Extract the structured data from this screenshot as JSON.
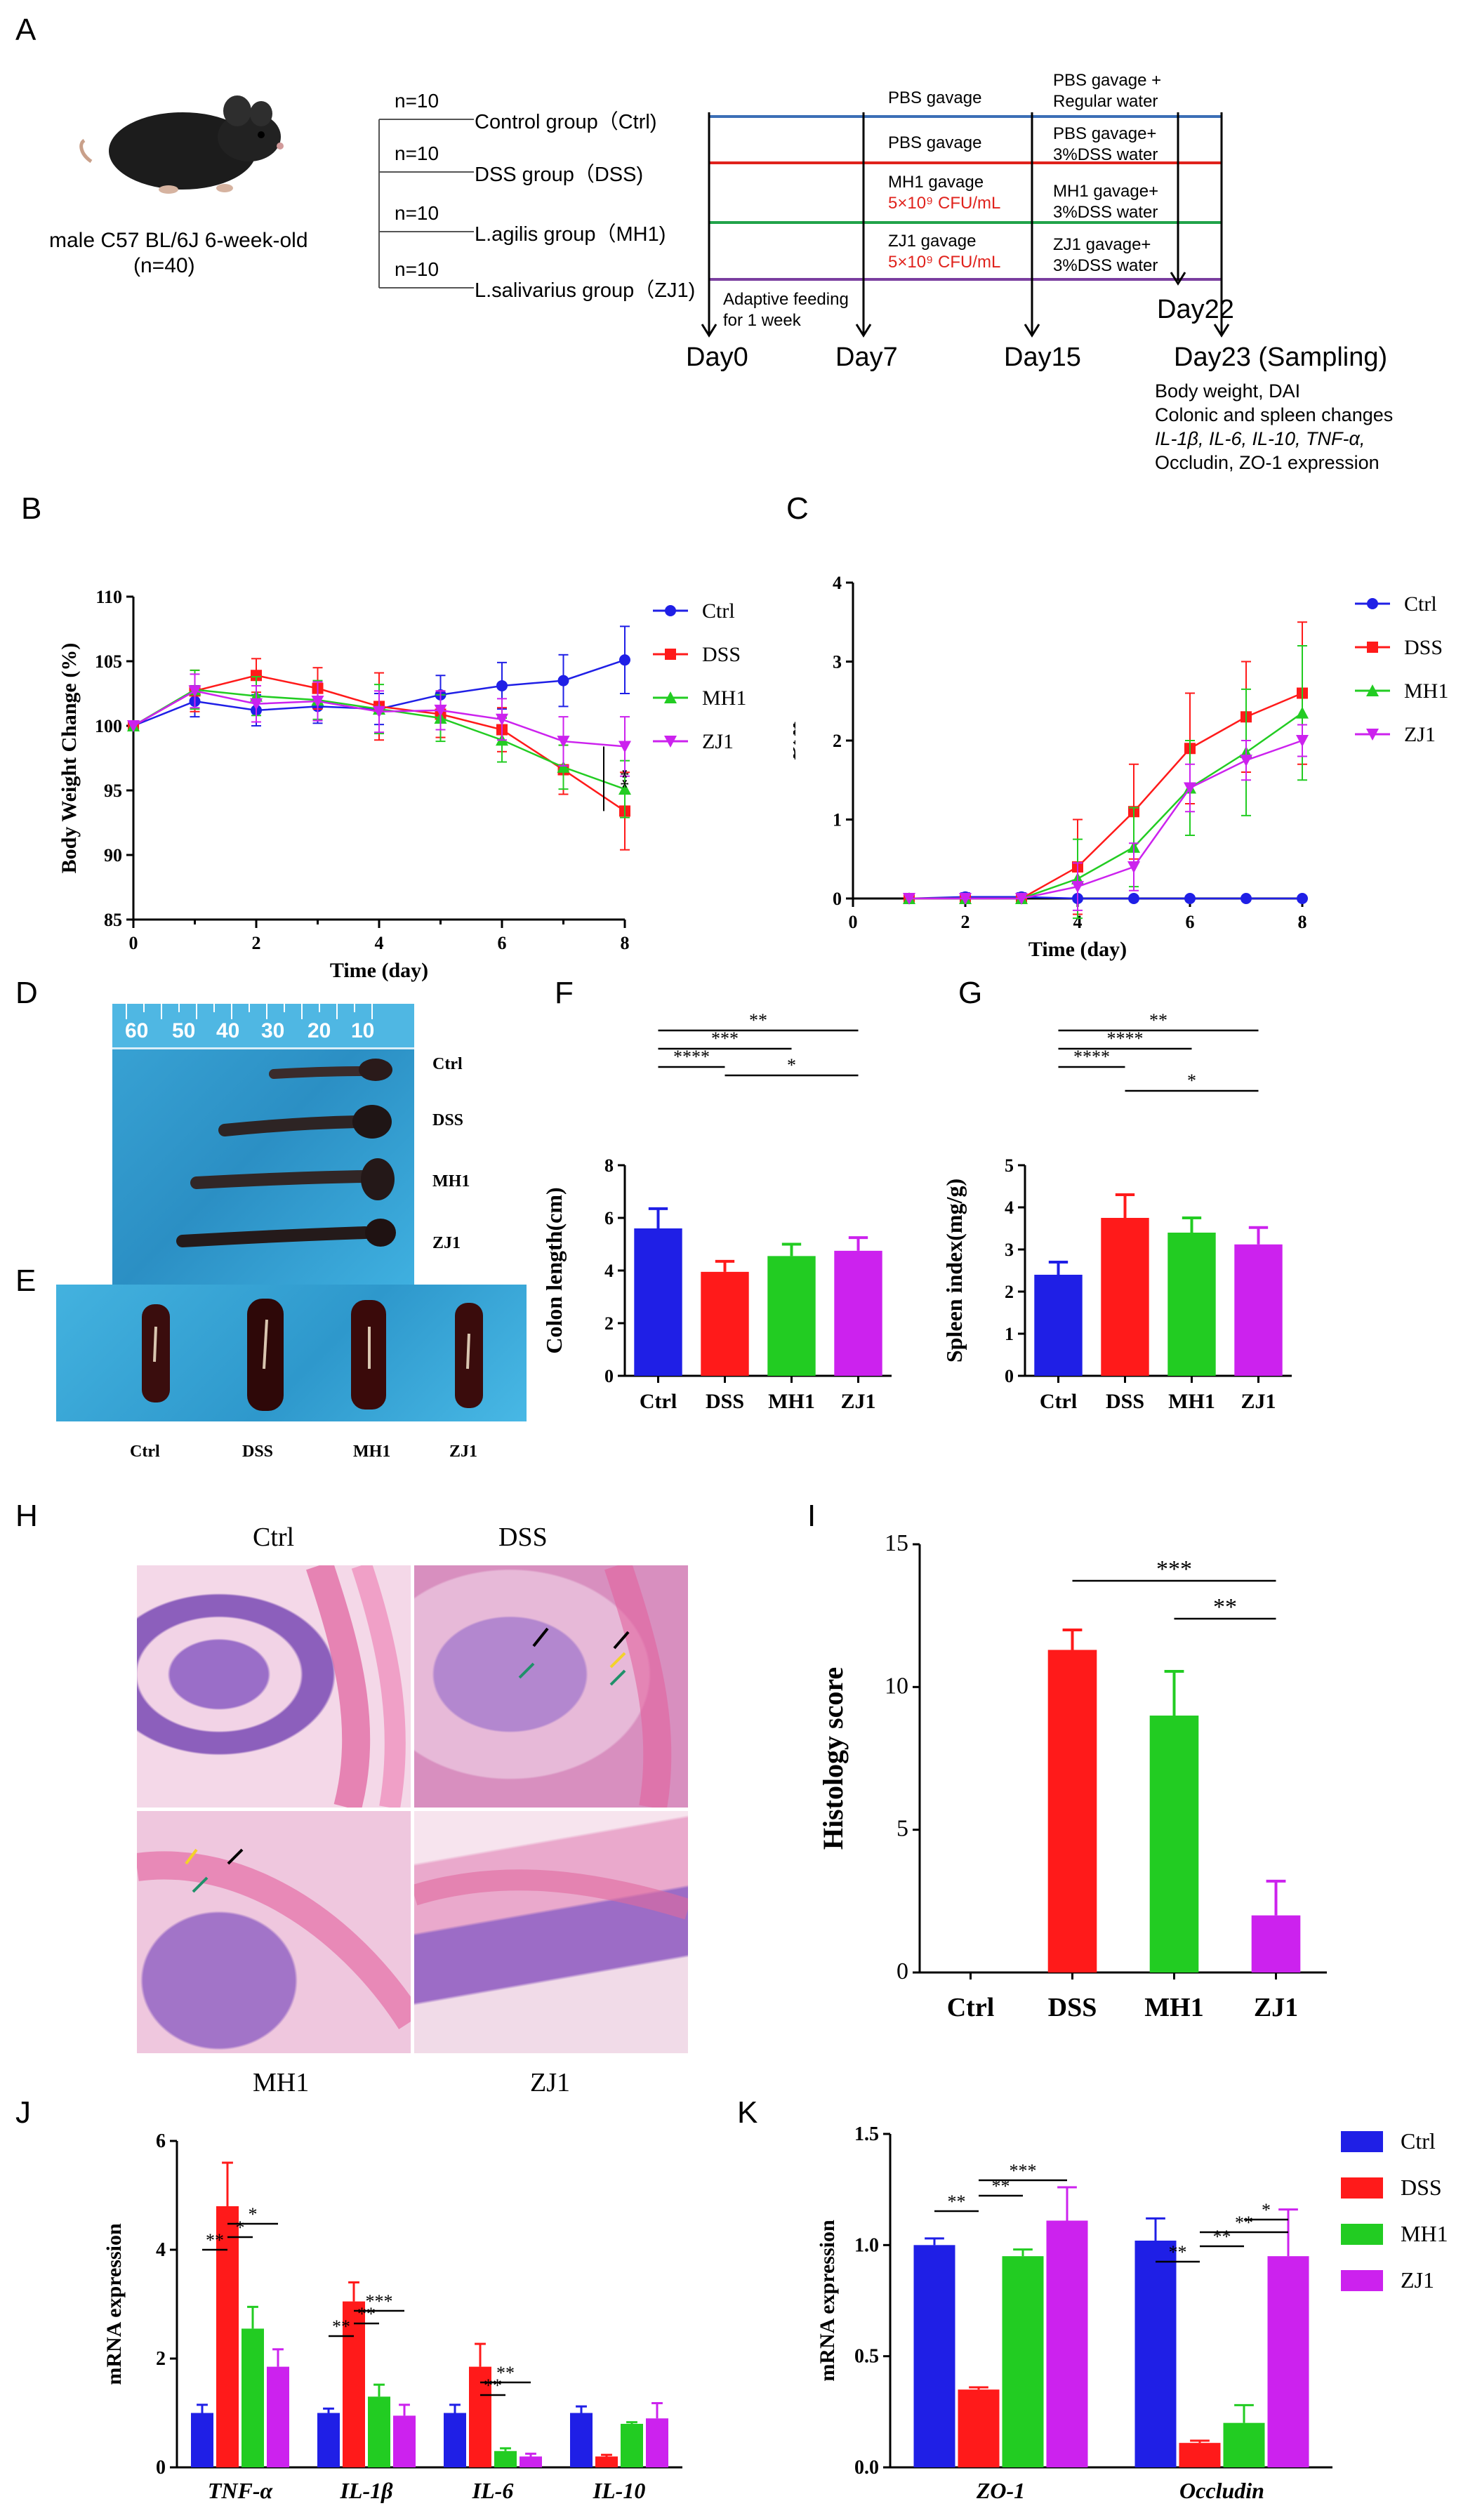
{
  "panels": {
    "A": {
      "letter": "A",
      "mouse_caption_1": "male C57 BL/6J  6-week-old",
      "mouse_caption_2": "(n=40)",
      "groups": [
        {
          "n": "n=10",
          "label": "Control group（Ctrl)"
        },
        {
          "n": "n=10",
          "label": "DSS group（DSS)"
        },
        {
          "n": "n=10",
          "label": "L.agilis group（MH1)"
        },
        {
          "n": "n=10",
          "label": "L.salivarius group（ZJ1)"
        }
      ],
      "col1": [
        "PBS gavage",
        "PBS gavage",
        "MH1 gavage",
        "ZJ1 gavage"
      ],
      "col1_dose": "5×10⁹ CFU/mL",
      "col2": [
        [
          "PBS gavage +",
          "Regular water"
        ],
        [
          "PBS gavage+",
          "3%DSS water"
        ],
        [
          "MH1 gavage+",
          "3%DSS water"
        ],
        [
          "ZJ1 gavage+",
          "3%DSS water"
        ]
      ],
      "adaptive_1": "Adaptive feeding",
      "adaptive_2": "for 1 week",
      "days": [
        "Day0",
        "Day7",
        "Day15",
        "Day22",
        "Day23 (Sampling)"
      ],
      "sampling_lines": [
        "Body weight, DAI",
        "Colonic and spleen changes",
        "IL-1β, IL-6, IL-10, TNF-α,",
        "Occludin, ZO-1 expression"
      ],
      "line_colors": [
        "#3b6fb6",
        "#e0221c",
        "#21a34a",
        "#7b3fa0"
      ]
    },
    "B": {
      "letter": "B"
    },
    "C": {
      "letter": "C"
    },
    "D": {
      "letter": "D",
      "ruler": [
        "60",
        "50",
        "40",
        "30",
        "20",
        "10"
      ],
      "labels": [
        "Ctrl",
        "DSS",
        "MH1",
        "ZJ1"
      ]
    },
    "E": {
      "letter": "E",
      "labels": [
        "Ctrl",
        "DSS",
        "MH1",
        "ZJ1"
      ]
    },
    "F": {
      "letter": "F"
    },
    "G": {
      "letter": "G"
    },
    "H": {
      "letter": "H",
      "labels": [
        "Ctrl",
        "DSS",
        "MH1",
        "ZJ1"
      ]
    },
    "I": {
      "letter": "I"
    },
    "J": {
      "letter": "J"
    },
    "K": {
      "letter": "K"
    }
  },
  "colors": {
    "Ctrl": "#1f1fe6",
    "DSS": "#ff1a1a",
    "MH1": "#22cc22",
    "ZJ1": "#cc22ee"
  },
  "chart_data": [
    {
      "id": "B",
      "type": "line",
      "xlabel": "Time (day)",
      "ylabel": "Body Weight Change (%)",
      "xlim": [
        0,
        8
      ],
      "ylim": [
        85,
        110
      ],
      "xticks": [
        "0",
        "2",
        "4",
        "6",
        "8"
      ],
      "yticks": [
        "85",
        "90",
        "95",
        "100",
        "105",
        "110"
      ],
      "x": [
        0,
        1,
        2,
        3,
        4,
        5,
        6,
        7,
        8
      ],
      "series": [
        {
          "name": "Ctrl",
          "values": [
            100,
            101.9,
            101.2,
            101.5,
            101.3,
            102.4,
            103.1,
            103.5,
            105.1
          ],
          "err": [
            0,
            1.2,
            1.2,
            1.3,
            1.2,
            1.5,
            1.8,
            2.0,
            2.6
          ]
        },
        {
          "name": "DSS",
          "values": [
            100,
            102.7,
            103.9,
            102.9,
            101.5,
            100.9,
            99.7,
            96.6,
            93.4
          ],
          "err": [
            0,
            1.6,
            1.3,
            1.6,
            2.6,
            1.8,
            1.7,
            1.9,
            3.0
          ]
        },
        {
          "name": "MH1",
          "values": [
            100,
            102.8,
            102.3,
            102.0,
            101.3,
            100.6,
            98.9,
            96.8,
            95.1
          ],
          "err": [
            0,
            1.5,
            1.5,
            1.5,
            1.9,
            1.8,
            1.7,
            1.7,
            2.2
          ]
        },
        {
          "name": "ZJ1",
          "values": [
            100,
            102.7,
            101.7,
            101.9,
            101.1,
            101.2,
            100.5,
            98.8,
            98.4
          ],
          "err": [
            0,
            1.3,
            1.4,
            1.5,
            1.6,
            1.5,
            1.6,
            1.9,
            2.3
          ]
        }
      ],
      "significance": "**"
    },
    {
      "id": "C",
      "type": "line",
      "xlabel": "Time (day)",
      "ylabel": "DAI",
      "xlim": [
        0,
        8
      ],
      "ylim": [
        0,
        4
      ],
      "xticks": [
        "0",
        "2",
        "4",
        "6",
        "8"
      ],
      "yticks": [
        "0",
        "1",
        "2",
        "3",
        "4"
      ],
      "x": [
        1,
        2,
        3,
        4,
        5,
        6,
        7,
        8
      ],
      "series": [
        {
          "name": "Ctrl",
          "values": [
            0,
            0.02,
            0.02,
            0,
            0,
            0,
            0,
            0
          ],
          "err": [
            0,
            0.05,
            0.05,
            0.02,
            0,
            0,
            0,
            0
          ]
        },
        {
          "name": "DSS",
          "values": [
            0,
            0,
            0,
            0.4,
            1.1,
            1.9,
            2.3,
            2.6
          ],
          "err": [
            0,
            0,
            0,
            0.6,
            0.6,
            0.7,
            0.7,
            0.9
          ]
        },
        {
          "name": "MH1",
          "values": [
            0,
            0,
            0,
            0.25,
            0.65,
            1.4,
            1.85,
            2.35
          ],
          "err": [
            0,
            0,
            0,
            0.5,
            0.5,
            0.6,
            0.8,
            0.85
          ]
        },
        {
          "name": "ZJ1",
          "values": [
            0,
            0,
            0,
            0.15,
            0.4,
            1.4,
            1.75,
            2.0
          ],
          "err": [
            0,
            0,
            0,
            0.3,
            0.3,
            0.3,
            0.25,
            0.2
          ]
        }
      ]
    },
    {
      "id": "F",
      "type": "bar",
      "ylabel": "Colon length(cm)",
      "categories": [
        "Ctrl",
        "DSS",
        "MH1",
        "ZJ1"
      ],
      "values": [
        5.6,
        3.95,
        4.55,
        4.75
      ],
      "err": [
        0.75,
        0.4,
        0.45,
        0.5
      ],
      "ylim": [
        0,
        8
      ],
      "yticks": [
        "0",
        "2",
        "4",
        "6",
        "8"
      ],
      "brackets": [
        {
          "a": 0,
          "b": 1,
          "label": "****"
        },
        {
          "a": 0,
          "b": 2,
          "label": "***"
        },
        {
          "a": 0,
          "b": 3,
          "label": "**"
        },
        {
          "a": 1,
          "b": 3,
          "label": "*"
        }
      ]
    },
    {
      "id": "G",
      "type": "bar",
      "ylabel": "Spleen index(mg/g)",
      "categories": [
        "Ctrl",
        "DSS",
        "MH1",
        "ZJ1"
      ],
      "values": [
        2.4,
        3.75,
        3.4,
        3.12
      ],
      "err": [
        0.3,
        0.55,
        0.35,
        0.4
      ],
      "ylim": [
        0,
        5
      ],
      "yticks": [
        "0",
        "1",
        "2",
        "3",
        "4",
        "5"
      ],
      "brackets": [
        {
          "a": 0,
          "b": 1,
          "label": "****"
        },
        {
          "a": 0,
          "b": 2,
          "label": "****"
        },
        {
          "a": 0,
          "b": 3,
          "label": "**"
        },
        {
          "a": 1,
          "b": 3,
          "label": "*"
        }
      ]
    },
    {
      "id": "I",
      "type": "bar",
      "ylabel": "Histology score",
      "categories": [
        "Ctrl",
        "DSS",
        "MH1",
        "ZJ1"
      ],
      "values": [
        0,
        11.3,
        9.0,
        2.0
      ],
      "err": [
        0,
        0.7,
        1.55,
        1.2
      ],
      "ylim": [
        0,
        15
      ],
      "yticks": [
        "0",
        "5",
        "10",
        "15"
      ],
      "brackets": [
        {
          "a": 1,
          "b": 3,
          "label": "***"
        },
        {
          "a": 2,
          "b": 3,
          "label": "**"
        }
      ]
    },
    {
      "id": "J",
      "type": "bar",
      "ylabel": "mRNA expression",
      "categories": [
        "TNF-α",
        "IL-1β",
        "IL-6",
        "IL-10"
      ],
      "ylim": [
        0,
        6
      ],
      "yticks": [
        "0",
        "2",
        "4",
        "6"
      ],
      "series": [
        {
          "name": "Ctrl",
          "values": [
            1.0,
            1.0,
            1.0,
            1.0
          ],
          "err": [
            0.15,
            0.08,
            0.15,
            0.12
          ]
        },
        {
          "name": "DSS",
          "values": [
            4.8,
            3.05,
            1.85,
            0.2
          ],
          "err": [
            0.8,
            0.35,
            0.42,
            0.03
          ]
        },
        {
          "name": "MH1",
          "values": [
            2.55,
            1.3,
            0.3,
            0.8
          ],
          "err": [
            0.4,
            0.22,
            0.05,
            0.03
          ]
        },
        {
          "name": "ZJ1",
          "values": [
            1.85,
            0.95,
            0.2,
            0.9
          ],
          "err": [
            0.32,
            0.2,
            0.05,
            0.28
          ]
        }
      ],
      "brackets": [
        {
          "g": 0,
          "a": 0,
          "b": 1,
          "label": "**"
        },
        {
          "g": 0,
          "a": 1,
          "b": 2,
          "label": "*"
        },
        {
          "g": 0,
          "a": 1,
          "b": 3,
          "label": "*"
        },
        {
          "g": 1,
          "a": 0,
          "b": 1,
          "label": "**"
        },
        {
          "g": 1,
          "a": 1,
          "b": 2,
          "label": "**"
        },
        {
          "g": 1,
          "a": 1,
          "b": 3,
          "label": "***"
        },
        {
          "g": 2,
          "a": 1,
          "b": 2,
          "label": "**"
        },
        {
          "g": 2,
          "a": 1,
          "b": 3,
          "label": "**"
        }
      ]
    },
    {
      "id": "K",
      "type": "bar",
      "ylabel": "mRNA expression",
      "categories": [
        "ZO-1",
        "Occludin"
      ],
      "ylim": [
        0,
        1.5
      ],
      "yticks": [
        "0.0",
        "0.5",
        "1.0",
        "1.5"
      ],
      "series": [
        {
          "name": "Ctrl",
          "values": [
            1.0,
            1.02
          ],
          "err": [
            0.03,
            0.1
          ]
        },
        {
          "name": "DSS",
          "values": [
            0.35,
            0.11
          ],
          "err": [
            0.01,
            0.01
          ]
        },
        {
          "name": "MH1",
          "values": [
            0.95,
            0.2
          ],
          "err": [
            0.03,
            0.08
          ]
        },
        {
          "name": "ZJ1",
          "values": [
            1.11,
            0.95
          ],
          "err": [
            0.15,
            0.21
          ]
        }
      ],
      "legend": [
        "Ctrl",
        "DSS",
        "MH1",
        "ZJ1"
      ],
      "brackets": [
        {
          "g": 0,
          "a": 0,
          "b": 1,
          "label": "**"
        },
        {
          "g": 0,
          "a": 1,
          "b": 2,
          "label": "**"
        },
        {
          "g": 0,
          "a": 1,
          "b": 3,
          "label": "***"
        },
        {
          "g": 1,
          "a": 0,
          "b": 1,
          "label": "**"
        },
        {
          "g": 1,
          "a": 1,
          "b": 2,
          "label": "**"
        },
        {
          "g": 1,
          "a": 1,
          "b": 3,
          "label": "**"
        },
        {
          "g": 1,
          "a": 2,
          "b": 3,
          "label": "*"
        }
      ]
    }
  ]
}
